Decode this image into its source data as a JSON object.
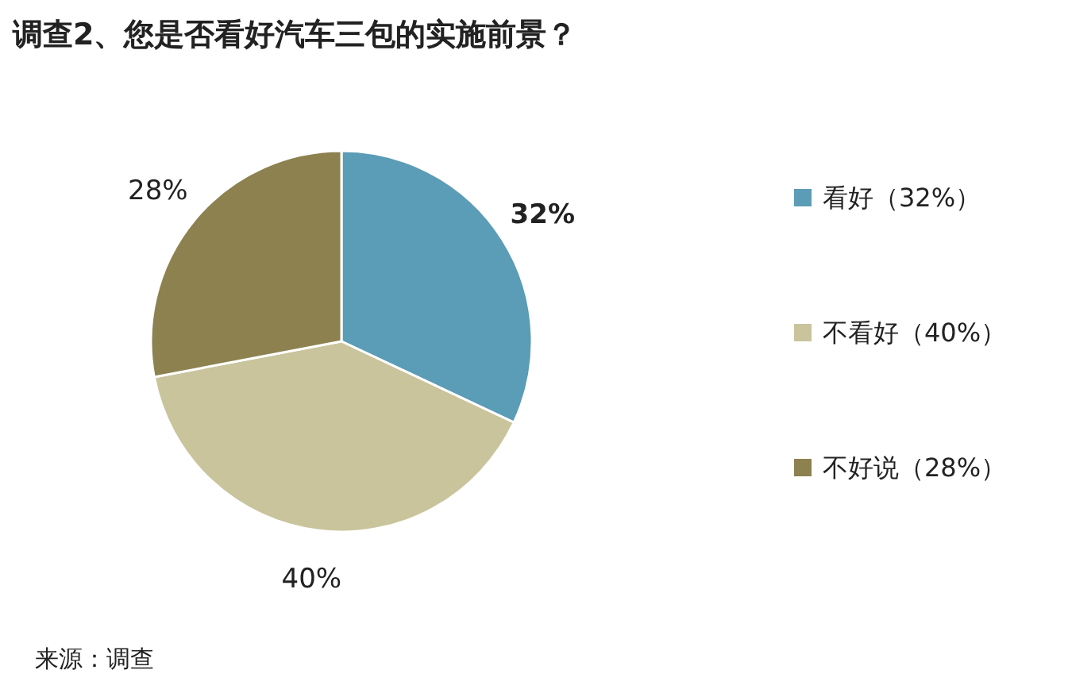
{
  "chart_data": {
    "type": "pie",
    "title": "调查2、您是否看好汽车三包的实施前景？",
    "categories": [
      "看好（32%）",
      "不看好（40%）",
      "不好说（28%）"
    ],
    "values": [
      32,
      40,
      28
    ],
    "colors": [
      "#5b9cb6",
      "#c9c49b",
      "#8d8150"
    ],
    "value_labels": [
      "32%",
      "40%",
      "28%"
    ],
    "legend": "right",
    "annotations": [
      "来源：调查"
    ]
  }
}
